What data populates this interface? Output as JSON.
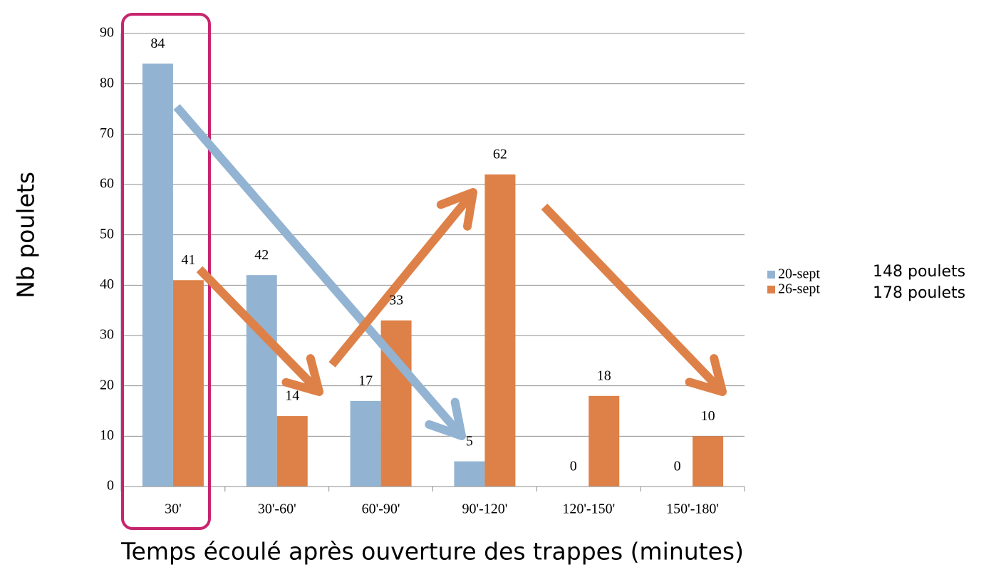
{
  "chart_data": {
    "type": "bar",
    "x_label": "Temps écoulé après ouverture des trappes (minutes)",
    "y_label": "Nb poulets",
    "categories": [
      "30'",
      "30'-60'",
      "60'-90'",
      "90'-120'",
      "120'-150'",
      "150'-180'"
    ],
    "series": [
      {
        "name": "20-sept",
        "color": "#93b3d2",
        "values": [
          84,
          42,
          17,
          5,
          0,
          0
        ]
      },
      {
        "name": "26-sept",
        "color": "#de8148",
        "values": [
          41,
          14,
          33,
          62,
          18,
          10
        ]
      }
    ],
    "annotations": [
      "148 poulets",
      "178 poulets"
    ],
    "ylim": [
      0,
      90
    ],
    "yticks": [
      0,
      10,
      20,
      30,
      40,
      50,
      60,
      70,
      80,
      90
    ],
    "grid": true,
    "legend": "right"
  }
}
